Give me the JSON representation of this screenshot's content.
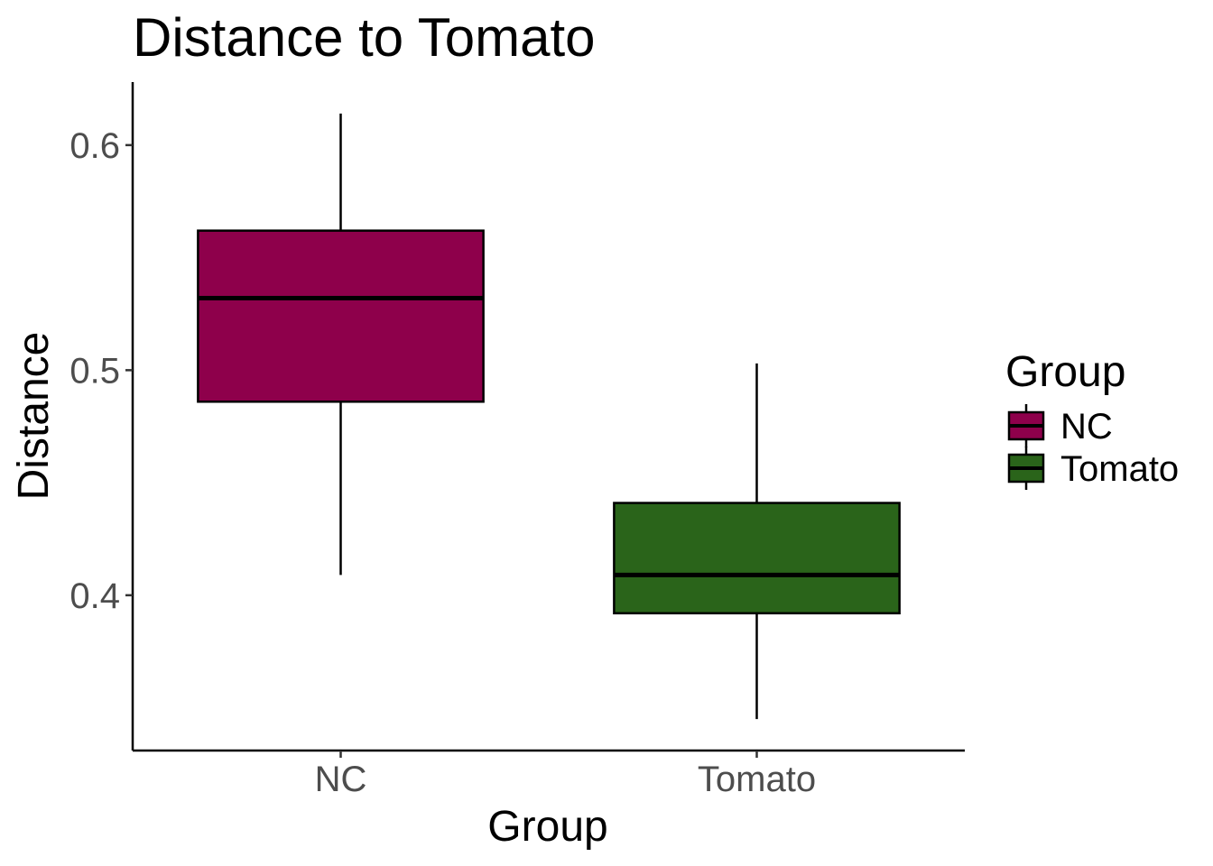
{
  "chart_data": {
    "type": "boxplot",
    "title": "Distance to Tomato",
    "xlabel": "Group",
    "ylabel": "Distance",
    "categories": [
      "NC",
      "Tomato"
    ],
    "ylim": [
      0.331,
      0.628
    ],
    "yticks": [
      0.4,
      0.5,
      0.6
    ],
    "ytick_labels": [
      "0.4",
      "0.5",
      "0.6"
    ],
    "grid": false,
    "legend": {
      "title": "Group",
      "position": "right",
      "entries": [
        "NC",
        "Tomato"
      ]
    },
    "series": [
      {
        "name": "NC",
        "color": "#8e004b",
        "min": 0.409,
        "q1": 0.486,
        "median": 0.532,
        "q3": 0.562,
        "max": 0.614
      },
      {
        "name": "Tomato",
        "color": "#2a641a",
        "min": 0.345,
        "q1": 0.392,
        "median": 0.409,
        "q3": 0.441,
        "max": 0.503
      }
    ]
  }
}
